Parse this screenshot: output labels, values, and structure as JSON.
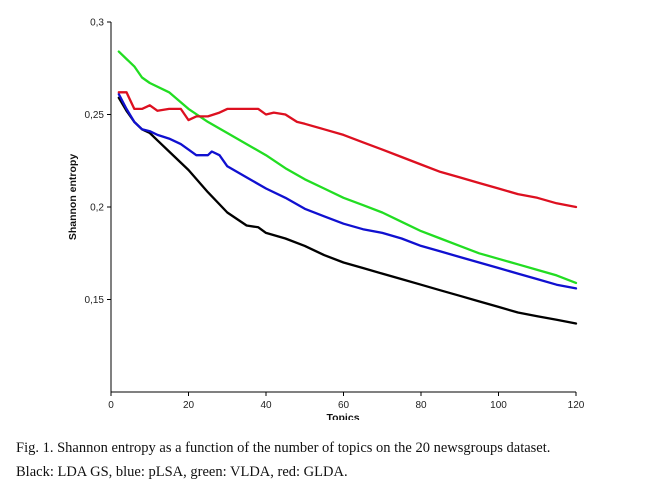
{
  "chart_data": {
    "type": "line",
    "title": "",
    "xlabel": "Topics",
    "ylabel": "Shannon entropy",
    "xlim": [
      0,
      120
    ],
    "ylim": [
      0.1,
      0.3
    ],
    "grid": false,
    "x_ticks": [
      0,
      20,
      40,
      60,
      80,
      100,
      120
    ],
    "x_tick_labels": [
      "0",
      "20",
      "40",
      "60",
      "80",
      "100",
      "120"
    ],
    "y_ticks": [
      0.15,
      0.2,
      0.25,
      0.3
    ],
    "y_tick_labels": [
      "0,15",
      "0,2",
      "0,25",
      "0,3"
    ],
    "series": [
      {
        "name": "LDA GS",
        "color": "#000000",
        "x": [
          2,
          4,
          6,
          8,
          10,
          12,
          15,
          20,
          25,
          30,
          35,
          38,
          40,
          45,
          50,
          55,
          60,
          65,
          70,
          75,
          80,
          85,
          90,
          95,
          100,
          105,
          110,
          115,
          120
        ],
        "y": [
          0.259,
          0.252,
          0.246,
          0.242,
          0.24,
          0.236,
          0.23,
          0.22,
          0.208,
          0.197,
          0.19,
          0.189,
          0.186,
          0.183,
          0.179,
          0.174,
          0.17,
          0.167,
          0.164,
          0.161,
          0.158,
          0.155,
          0.152,
          0.149,
          0.146,
          0.143,
          0.141,
          0.139,
          0.137
        ]
      },
      {
        "name": "pLSA",
        "color": "#1010d0",
        "x": [
          2,
          4,
          6,
          8,
          10,
          12,
          15,
          18,
          20,
          22,
          25,
          26,
          28,
          30,
          35,
          40,
          45,
          50,
          55,
          60,
          65,
          70,
          75,
          80,
          85,
          90,
          95,
          100,
          105,
          110,
          115,
          120
        ],
        "y": [
          0.261,
          0.253,
          0.246,
          0.242,
          0.241,
          0.239,
          0.237,
          0.234,
          0.231,
          0.228,
          0.228,
          0.23,
          0.228,
          0.222,
          0.216,
          0.21,
          0.205,
          0.199,
          0.195,
          0.191,
          0.188,
          0.186,
          0.183,
          0.179,
          0.176,
          0.173,
          0.17,
          0.167,
          0.164,
          0.161,
          0.158,
          0.156
        ]
      },
      {
        "name": "VLDA",
        "color": "#22dd22",
        "x": [
          2,
          4,
          6,
          8,
          10,
          15,
          20,
          25,
          30,
          35,
          40,
          45,
          50,
          55,
          60,
          65,
          70,
          75,
          80,
          85,
          90,
          95,
          100,
          105,
          110,
          115,
          120
        ],
        "y": [
          0.284,
          0.28,
          0.276,
          0.27,
          0.267,
          0.262,
          0.253,
          0.246,
          0.24,
          0.234,
          0.228,
          0.221,
          0.215,
          0.21,
          0.205,
          0.201,
          0.197,
          0.192,
          0.187,
          0.183,
          0.179,
          0.175,
          0.172,
          0.169,
          0.166,
          0.163,
          0.159
        ]
      },
      {
        "name": "GLDA",
        "color": "#dd1020",
        "x": [
          2,
          4,
          6,
          8,
          10,
          12,
          15,
          18,
          20,
          22,
          25,
          28,
          30,
          35,
          38,
          40,
          42,
          45,
          48,
          50,
          55,
          60,
          65,
          70,
          75,
          80,
          85,
          90,
          95,
          100,
          105,
          110,
          115,
          120
        ],
        "y": [
          0.262,
          0.262,
          0.253,
          0.253,
          0.255,
          0.252,
          0.253,
          0.253,
          0.247,
          0.249,
          0.249,
          0.251,
          0.253,
          0.253,
          0.253,
          0.25,
          0.251,
          0.25,
          0.246,
          0.245,
          0.242,
          0.239,
          0.235,
          0.231,
          0.227,
          0.223,
          0.219,
          0.216,
          0.213,
          0.21,
          0.207,
          0.205,
          0.202,
          0.2
        ]
      }
    ]
  },
  "caption": {
    "line1": "Fig. 1. Shannon entropy as a function of the number of topics on the 20 newsgroups dataset.",
    "line2": "Black: LDA GS, blue: pLSA, green: VLDA, red: GLDA."
  }
}
